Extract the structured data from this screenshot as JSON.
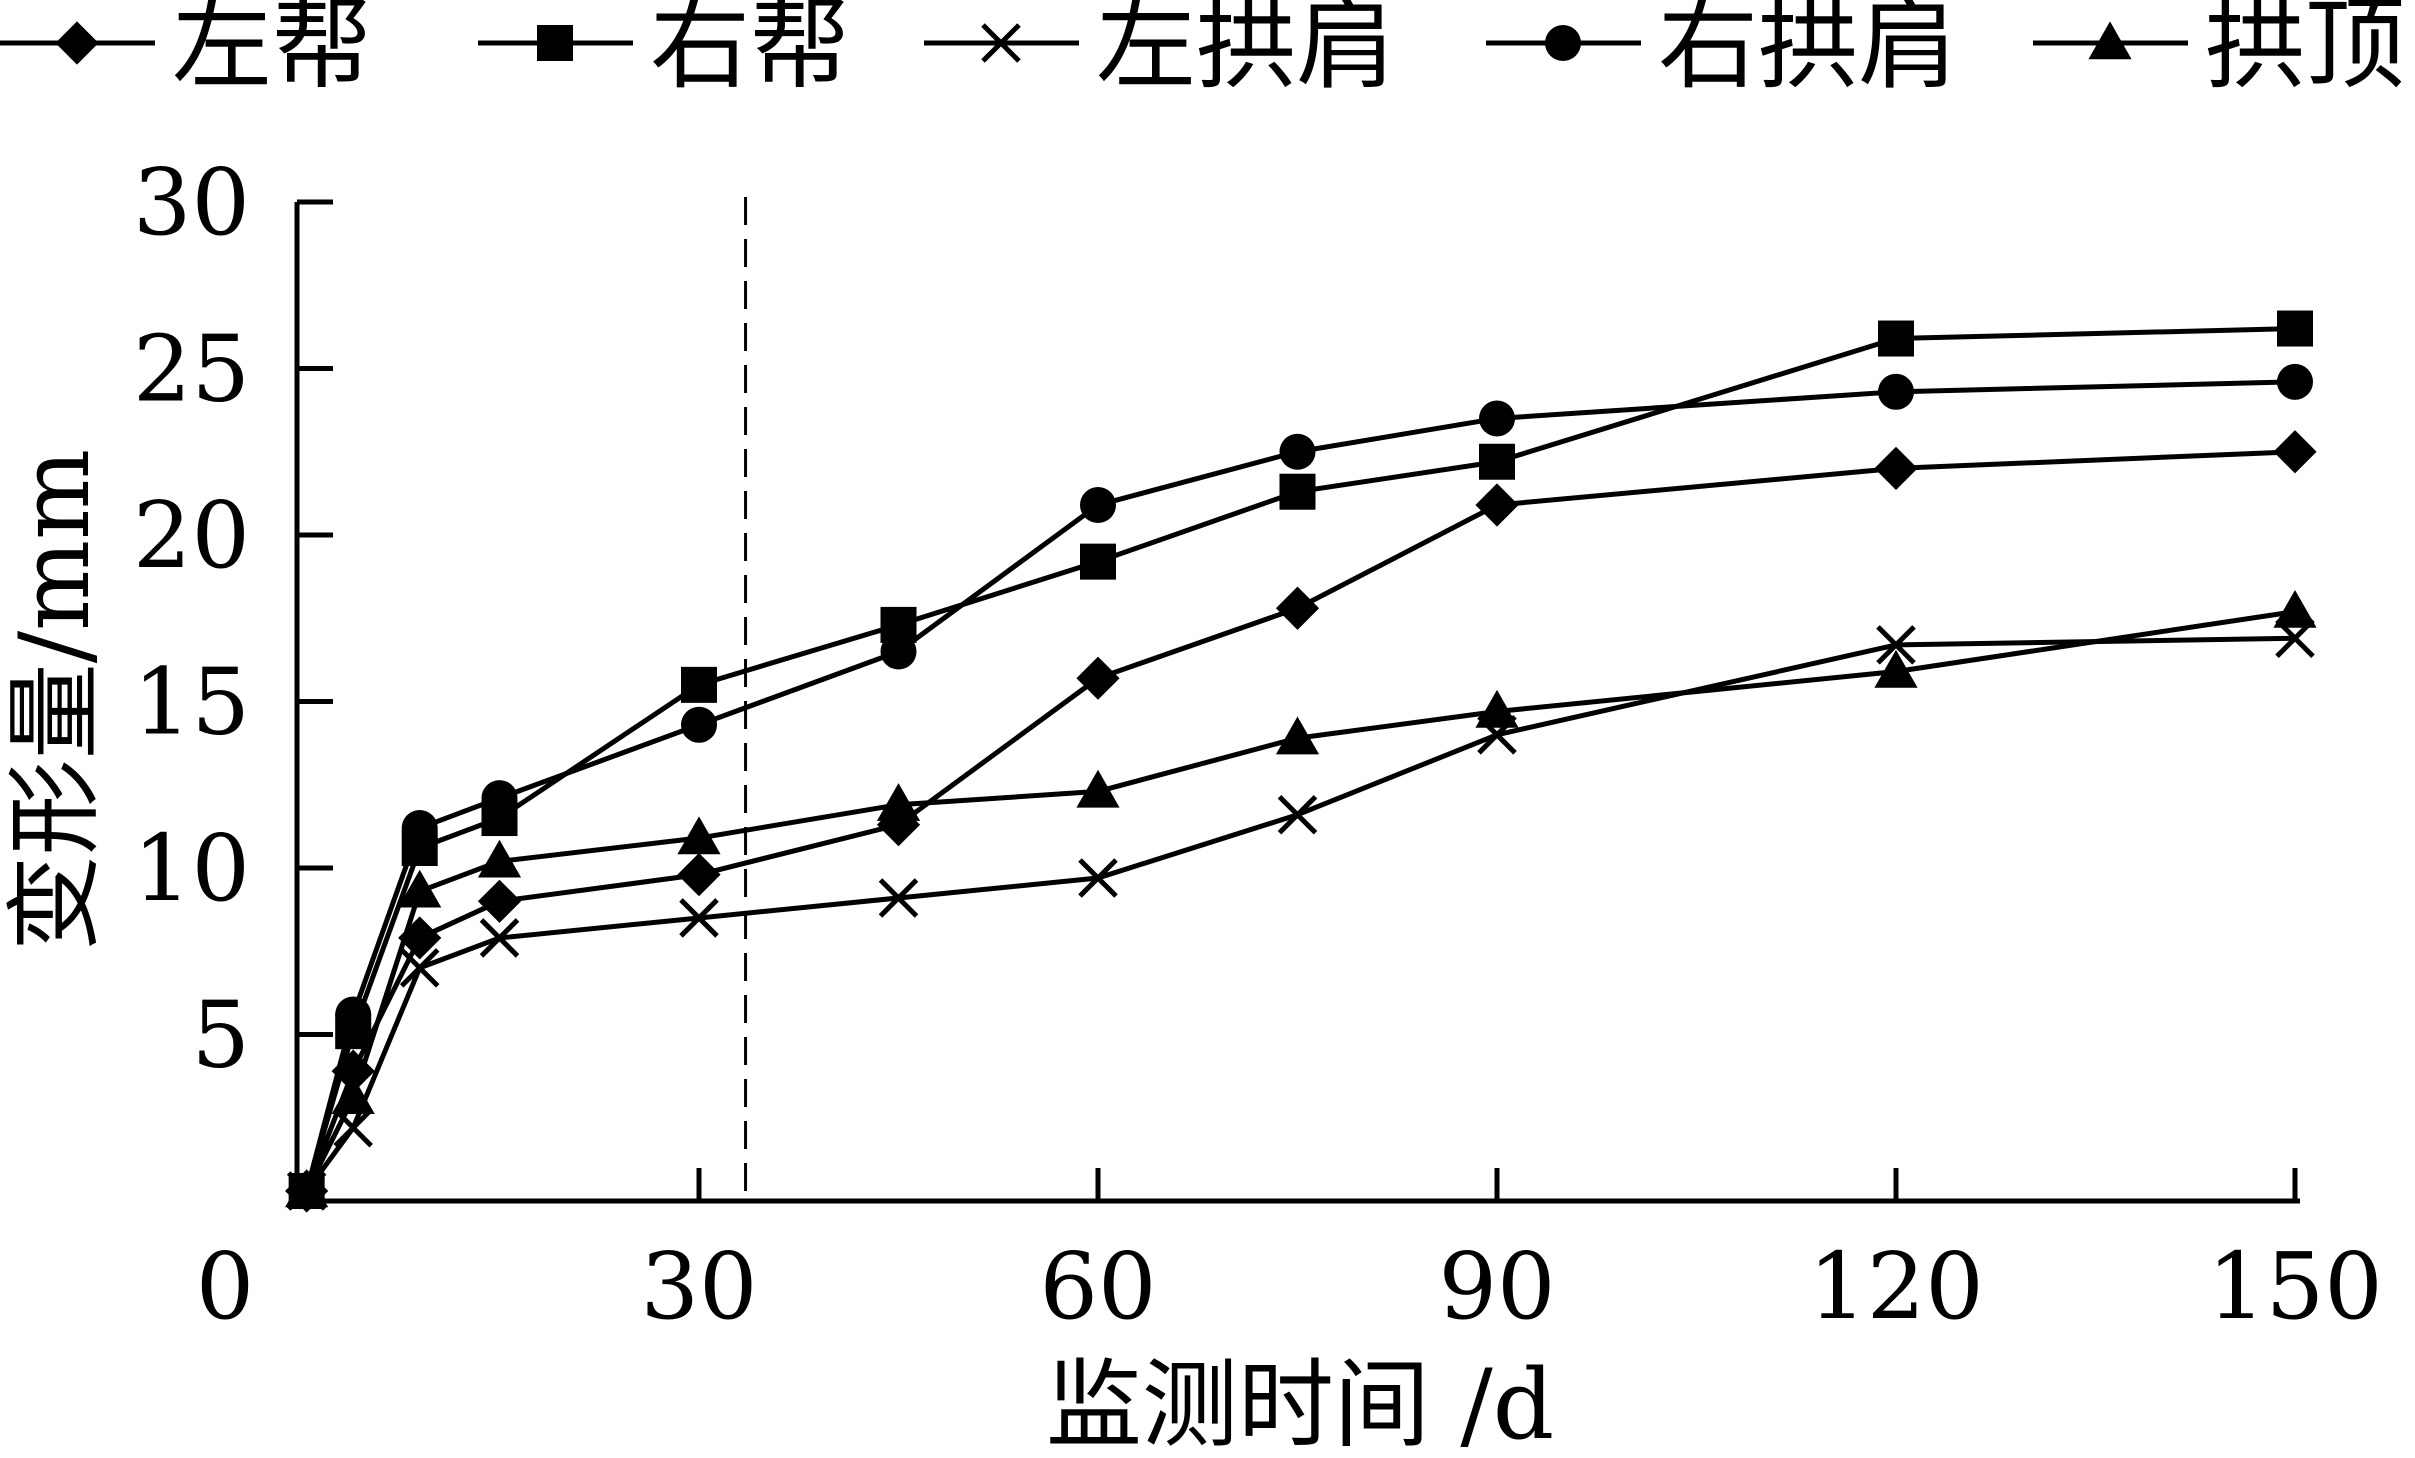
{
  "chart_data": {
    "type": "line",
    "title": "",
    "xlabel": "监测时间 /d",
    "ylabel": "变形量/mm",
    "xlim": [
      0,
      150
    ],
    "ylim": [
      0,
      30
    ],
    "xticks": [
      0,
      30,
      60,
      90,
      120,
      150
    ],
    "yticks": [
      5,
      10,
      15,
      20,
      25,
      30
    ],
    "x_tick_labels": [
      "0",
      "30",
      "60",
      "90",
      "120",
      "150"
    ],
    "y_tick_labels": [
      "5",
      "10",
      "15",
      "20",
      "25",
      "30"
    ],
    "grid": false,
    "legend_position": "top",
    "reference_line_x": 33.5,
    "x": [
      0.5,
      4,
      9,
      15,
      30,
      45,
      60,
      75,
      90,
      120,
      150
    ],
    "series": [
      {
        "name": "左帮",
        "marker": "diamond",
        "values": [
          0.3,
          3.9,
          7.9,
          9.0,
          9.8,
          11.3,
          15.7,
          17.8,
          20.9,
          22.0,
          22.5
        ]
      },
      {
        "name": "右帮",
        "marker": "square",
        "values": [
          0.3,
          5.1,
          10.6,
          11.5,
          15.5,
          17.3,
          19.2,
          21.3,
          22.2,
          25.9,
          26.2
        ]
      },
      {
        "name": "左拱肩",
        "marker": "x",
        "values": [
          0.3,
          2.2,
          7.0,
          7.9,
          8.5,
          9.1,
          9.7,
          11.6,
          14.0,
          16.7,
          16.9
        ]
      },
      {
        "name": "右拱肩",
        "marker": "circle",
        "values": [
          0.3,
          5.6,
          11.2,
          12.1,
          14.3,
          16.5,
          20.9,
          22.5,
          23.5,
          24.3,
          24.6
        ]
      },
      {
        "name": "拱顶",
        "marker": "triangle",
        "values": [
          0.3,
          3.1,
          9.3,
          10.2,
          10.9,
          11.9,
          12.3,
          13.9,
          14.7,
          15.9,
          17.7
        ]
      }
    ]
  }
}
